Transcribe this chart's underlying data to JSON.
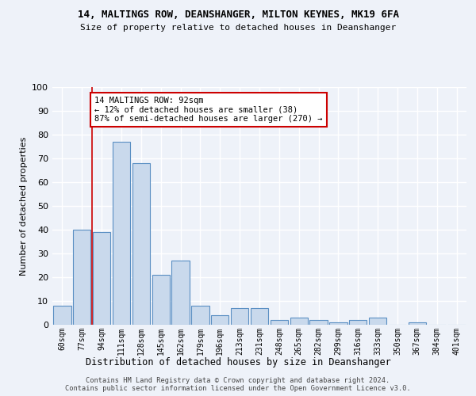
{
  "title1": "14, MALTINGS ROW, DEANSHANGER, MILTON KEYNES, MK19 6FA",
  "title2": "Size of property relative to detached houses in Deanshanger",
  "xlabel": "Distribution of detached houses by size in Deanshanger",
  "ylabel": "Number of detached properties",
  "categories": [
    "60sqm",
    "77sqm",
    "94sqm",
    "111sqm",
    "128sqm",
    "145sqm",
    "162sqm",
    "179sqm",
    "196sqm",
    "213sqm",
    "231sqm",
    "248sqm",
    "265sqm",
    "282sqm",
    "299sqm",
    "316sqm",
    "333sqm",
    "350sqm",
    "367sqm",
    "384sqm",
    "401sqm"
  ],
  "values": [
    8,
    40,
    39,
    77,
    68,
    21,
    27,
    8,
    4,
    7,
    7,
    2,
    3,
    2,
    1,
    2,
    3,
    0,
    1,
    0,
    0
  ],
  "bar_color": "#c9d9ec",
  "bar_edge_color": "#5a8fc3",
  "vline_color": "#cc0000",
  "annotation_text": "14 MALTINGS ROW: 92sqm\n← 12% of detached houses are smaller (38)\n87% of semi-detached houses are larger (270) →",
  "annotation_box_color": "#ffffff",
  "annotation_box_edge": "#cc0000",
  "ylim": [
    0,
    100
  ],
  "yticks": [
    0,
    10,
    20,
    30,
    40,
    50,
    60,
    70,
    80,
    90,
    100
  ],
  "background_color": "#eef2f9",
  "grid_color": "#ffffff",
  "footer": "Contains HM Land Registry data © Crown copyright and database right 2024.\nContains public sector information licensed under the Open Government Licence v3.0."
}
